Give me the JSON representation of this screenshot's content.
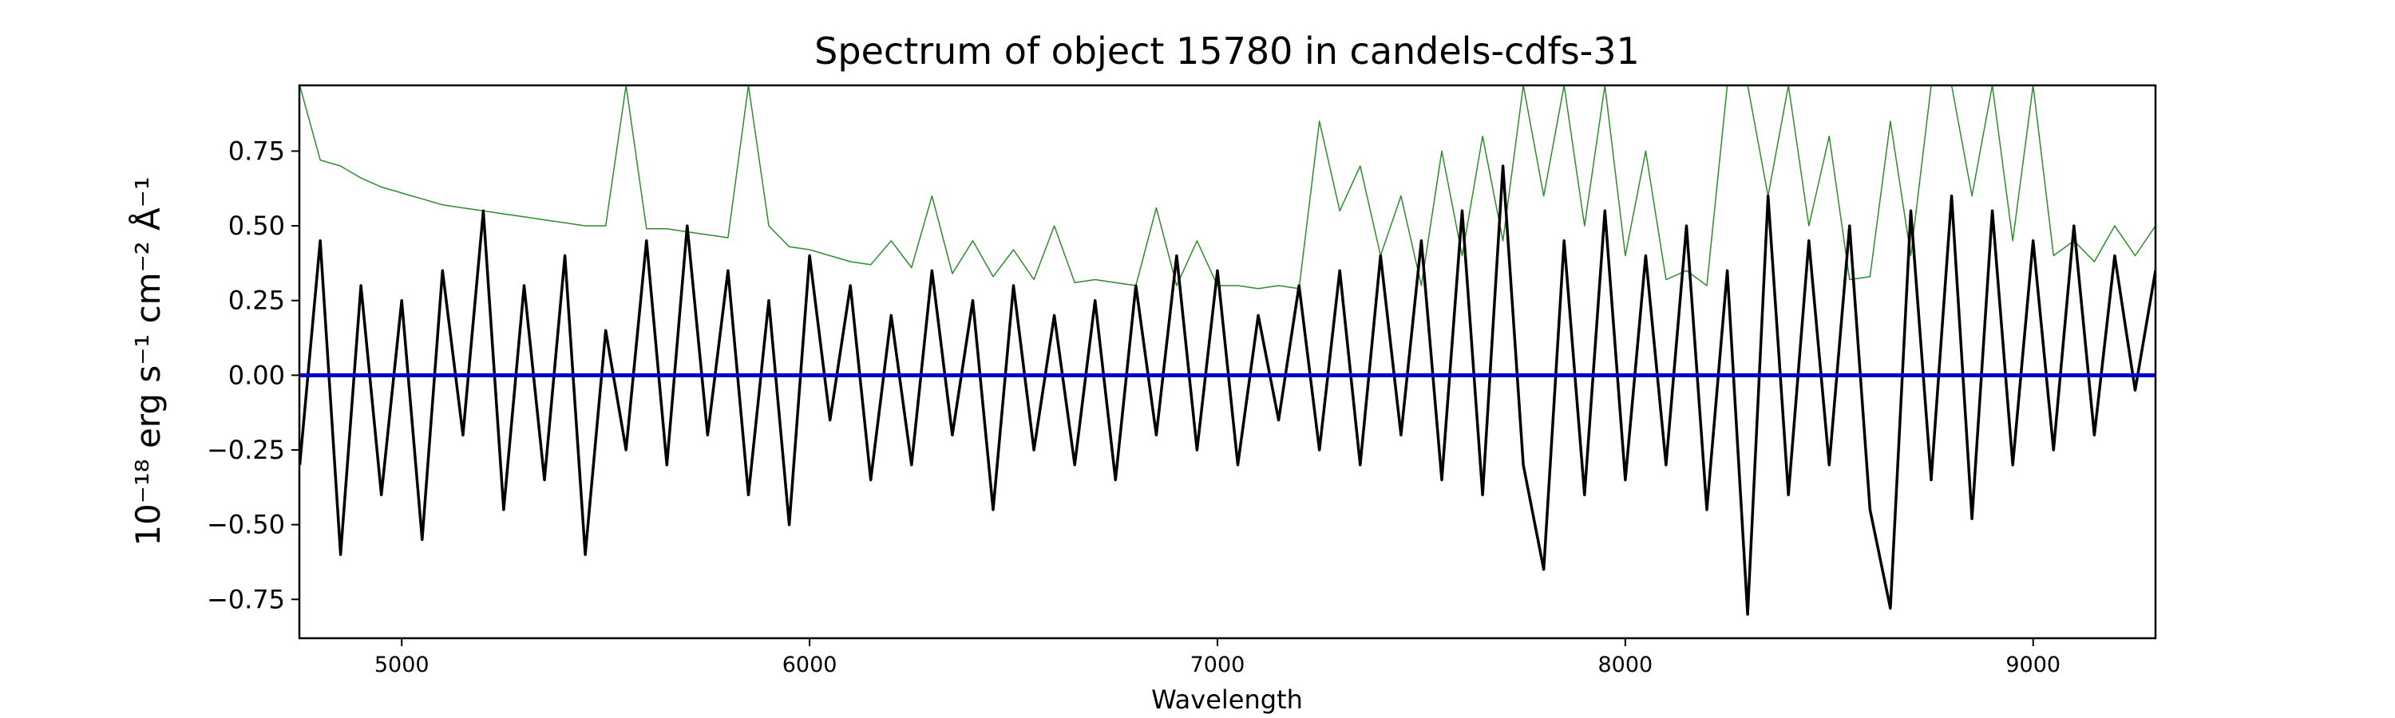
{
  "chart_data": {
    "type": "line",
    "title": "Spectrum of object 15780 in candels-cdfs-31",
    "x_label": "Wavelength",
    "y_label": "10⁻¹⁸ erg s⁻¹ cm⁻² Å⁻¹",
    "xlim": [
      4749,
      9300
    ],
    "ylim": [
      -0.88,
      0.97
    ],
    "xticks": [
      5000,
      6000,
      7000,
      8000,
      9000
    ],
    "yticks": [
      {
        "value": -0.75,
        "label": "−0.75"
      },
      {
        "value": -0.5,
        "label": "−0.50"
      },
      {
        "value": -0.25,
        "label": "−0.25"
      },
      {
        "value": 0,
        "label": "0.00"
      },
      {
        "value": 0.25,
        "label": "0.25"
      },
      {
        "value": 0.5,
        "label": "0.50"
      },
      {
        "value": 0.75,
        "label": "0.75"
      }
    ],
    "series": [
      {
        "color": "#2e8b2e",
        "width": 1.5,
        "x": [
          4750,
          4800,
          4850,
          4900,
          4950,
          5000,
          5050,
          5100,
          5150,
          5200,
          5250,
          5300,
          5350,
          5400,
          5450,
          5500,
          5550,
          5600,
          5650,
          5700,
          5750,
          5800,
          5850,
          5900,
          5950,
          6000,
          6050,
          6100,
          6150,
          6200,
          6250,
          6300,
          6350,
          6400,
          6450,
          6500,
          6550,
          6600,
          6650,
          6700,
          6750,
          6800,
          6850,
          6900,
          6950,
          7000,
          7050,
          7100,
          7150,
          7200,
          7250,
          7300,
          7350,
          7400,
          7450,
          7500,
          7550,
          7600,
          7650,
          7700,
          7750,
          7800,
          7850,
          7900,
          7950,
          8000,
          8050,
          8100,
          8150,
          8200,
          8250,
          8300,
          8350,
          8400,
          8450,
          8500,
          8550,
          8600,
          8650,
          8700,
          8750,
          8800,
          8850,
          8900,
          8950,
          9000,
          9050,
          9100,
          9150,
          9200,
          9250,
          9300
        ],
        "values": [
          0.97,
          0.72,
          0.7,
          0.66,
          0.63,
          0.61,
          0.59,
          0.57,
          0.56,
          0.55,
          0.54,
          0.53,
          0.52,
          0.51,
          0.5,
          0.5,
          0.97,
          0.49,
          0.49,
          0.48,
          0.47,
          0.46,
          0.97,
          0.5,
          0.43,
          0.42,
          0.4,
          0.38,
          0.37,
          0.45,
          0.36,
          0.6,
          0.34,
          0.45,
          0.33,
          0.42,
          0.32,
          0.5,
          0.31,
          0.32,
          0.31,
          0.3,
          0.56,
          0.3,
          0.45,
          0.3,
          0.3,
          0.29,
          0.3,
          0.29,
          0.85,
          0.55,
          0.7,
          0.4,
          0.6,
          0.3,
          0.75,
          0.4,
          0.8,
          0.45,
          0.97,
          0.6,
          0.97,
          0.5,
          0.97,
          0.4,
          0.75,
          0.32,
          0.35,
          0.3,
          0.97,
          0.97,
          0.6,
          0.97,
          0.5,
          0.8,
          0.32,
          0.33,
          0.85,
          0.4,
          0.97,
          0.97,
          0.6,
          0.97,
          0.45,
          0.97,
          0.4,
          0.45,
          0.38,
          0.5,
          0.4,
          0.5
        ]
      },
      {
        "color": "#000000",
        "width": 3.5,
        "x": [
          4750,
          4800,
          4850,
          4900,
          4950,
          5000,
          5050,
          5100,
          5150,
          5200,
          5250,
          5300,
          5350,
          5400,
          5450,
          5500,
          5550,
          5600,
          5650,
          5700,
          5750,
          5800,
          5850,
          5900,
          5950,
          6000,
          6050,
          6100,
          6150,
          6200,
          6250,
          6300,
          6350,
          6400,
          6450,
          6500,
          6550,
          6600,
          6650,
          6700,
          6750,
          6800,
          6850,
          6900,
          6950,
          7000,
          7050,
          7100,
          7150,
          7200,
          7250,
          7300,
          7350,
          7400,
          7450,
          7500,
          7550,
          7600,
          7650,
          7700,
          7750,
          7800,
          7850,
          7900,
          7950,
          8000,
          8050,
          8100,
          8150,
          8200,
          8250,
          8300,
          8350,
          8400,
          8450,
          8500,
          8550,
          8600,
          8650,
          8700,
          8750,
          8800,
          8850,
          8900,
          8950,
          9000,
          9050,
          9100,
          9150,
          9200,
          9250,
          9300
        ],
        "values": [
          -0.3,
          0.45,
          -0.6,
          0.3,
          -0.4,
          0.25,
          -0.55,
          0.35,
          -0.2,
          0.55,
          -0.45,
          0.3,
          -0.35,
          0.4,
          -0.6,
          0.15,
          -0.25,
          0.45,
          -0.3,
          0.5,
          -0.2,
          0.35,
          -0.4,
          0.25,
          -0.5,
          0.4,
          -0.15,
          0.3,
          -0.35,
          0.2,
          -0.3,
          0.35,
          -0.2,
          0.25,
          -0.45,
          0.3,
          -0.25,
          0.2,
          -0.3,
          0.25,
          -0.35,
          0.3,
          -0.2,
          0.4,
          -0.25,
          0.35,
          -0.3,
          0.2,
          -0.15,
          0.3,
          -0.25,
          0.35,
          -0.3,
          0.4,
          -0.2,
          0.45,
          -0.35,
          0.55,
          -0.4,
          0.7,
          -0.3,
          -0.65,
          0.45,
          -0.4,
          0.55,
          -0.35,
          0.4,
          -0.3,
          0.5,
          -0.45,
          0.35,
          -0.8,
          0.6,
          -0.4,
          0.45,
          -0.3,
          0.5,
          -0.45,
          -0.78,
          0.55,
          -0.35,
          0.6,
          -0.48,
          0.55,
          -0.3,
          0.45,
          -0.25,
          0.5,
          -0.2,
          0.4,
          -0.05,
          0.35
        ]
      },
      {
        "color": "#0000cc",
        "width": 5,
        "x": [
          4749,
          9300
        ],
        "values": [
          0,
          0
        ]
      }
    ]
  }
}
